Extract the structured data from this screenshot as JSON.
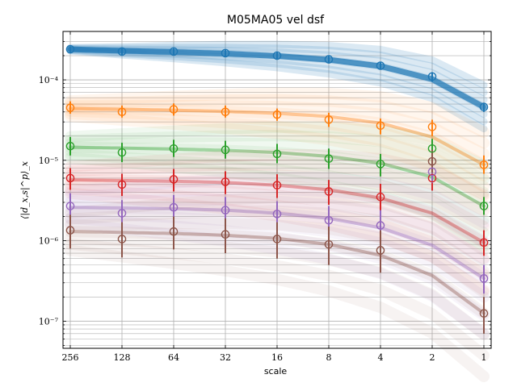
{
  "chart_data": {
    "type": "scatter",
    "title": "M05MA05 vel dsf",
    "xlabel": "scale",
    "ylabel": "⟨|d_x,s|^p⟩_x",
    "x_scale": "log2-reversed",
    "y_scale": "log",
    "x": [
      256,
      128,
      64,
      32,
      16,
      8,
      4,
      2,
      1
    ],
    "x_tick_labels": [
      "256",
      "128",
      "64",
      "32",
      "16",
      "8",
      "4",
      "2",
      "1"
    ],
    "xlim": [
      1,
      256
    ],
    "ylim": [
      4.6e-08,
      0.0004
    ],
    "y_ticks": [
      1e-07,
      1e-06,
      1e-05,
      0.0001
    ],
    "y_tick_labels": [
      "10⁻⁷",
      "10⁻⁶",
      "10⁻⁵",
      "10⁻⁴"
    ],
    "grid": true,
    "series": [
      {
        "color": "#1f77b4",
        "values": [
          0.00024,
          0.000225,
          0.000225,
          0.000215,
          0.0002,
          0.00018,
          0.00015,
          0.00011,
          4.6e-05
        ],
        "err_low": [
          0.00022,
          0.000205,
          0.000205,
          0.000195,
          0.00018,
          0.00016,
          0.000135,
          9.5e-05,
          4e-05
        ],
        "err_high": [
          0.00026,
          0.000245,
          0.000245,
          0.000235,
          0.00022,
          0.0002,
          0.000165,
          0.000125,
          5.2e-05
        ],
        "fit": [
          0.00024,
          0.00023,
          0.000222,
          0.000212,
          0.000198,
          0.000178,
          0.000148,
          0.000102,
          4.6e-05
        ]
      },
      {
        "color": "#ff7f0e",
        "values": [
          4.5e-05,
          4e-05,
          4.3e-05,
          4e-05,
          3.7e-05,
          3.2e-05,
          2.7e-05,
          2.6e-05,
          8.8e-06
        ],
        "err_low": [
          3.8e-05,
          3.4e-05,
          3.6e-05,
          3.4e-05,
          3.1e-05,
          2.6e-05,
          2.1e-05,
          2e-05,
          6.8e-06
        ],
        "err_high": [
          5.4e-05,
          4.8e-05,
          5.1e-05,
          4.8e-05,
          4.4e-05,
          3.9e-05,
          3.3e-05,
          3.2e-05,
          1.15e-05
        ],
        "fit": [
          4.4e-05,
          4.3e-05,
          4.2e-05,
          4.05e-05,
          3.85e-05,
          3.5e-05,
          2.9e-05,
          1.95e-05,
          8.8e-06
        ]
      },
      {
        "color": "#2ca02c",
        "values": [
          1.5e-05,
          1.25e-05,
          1.4e-05,
          1.35e-05,
          1.2e-05,
          1.05e-05,
          9e-06,
          1.4e-05,
          2.7e-06
        ],
        "err_low": [
          1.15e-05,
          9.5e-06,
          1.1e-05,
          1.05e-05,
          9.2e-06,
          7.8e-06,
          6.3e-06,
          1.05e-05,
          2.1e-06
        ],
        "err_high": [
          1.95e-05,
          1.65e-05,
          1.8e-05,
          1.75e-05,
          1.6e-05,
          1.4e-05,
          1.2e-05,
          1.85e-05,
          3.5e-06
        ],
        "fit": [
          1.45e-05,
          1.42e-05,
          1.38e-05,
          1.33e-05,
          1.25e-05,
          1.12e-05,
          9.2e-06,
          6.2e-06,
          2.7e-06
        ]
      },
      {
        "color": "#d62728",
        "values": [
          6e-06,
          5e-06,
          5.8e-06,
          5.4e-06,
          4.9e-06,
          4.1e-06,
          3.5e-06,
          6e-06,
          9.5e-07
        ],
        "err_low": [
          4.3e-06,
          3.6e-06,
          4.1e-06,
          3.8e-06,
          3.4e-06,
          2.8e-06,
          2.3e-06,
          4.2e-06,
          6.5e-07
        ],
        "err_high": [
          8e-06,
          6.8e-06,
          7.8e-06,
          7.3e-06,
          6.7e-06,
          5.7e-06,
          5.1e-06,
          8.2e-06,
          1.35e-06
        ],
        "fit": [
          5.7e-06,
          5.6e-06,
          5.5e-06,
          5.3e-06,
          4.9e-06,
          4.3e-06,
          3.4e-06,
          2.2e-06,
          9.5e-07
        ]
      },
      {
        "color": "#9467bd",
        "values": [
          2.7e-06,
          2.2e-06,
          2.6e-06,
          2.4e-06,
          2.15e-06,
          1.8e-06,
          1.55e-06,
          7.2e-06,
          3.4e-07
        ],
        "err_low": [
          1.8e-06,
          1.5e-06,
          1.75e-06,
          1.6e-06,
          1.45e-06,
          1.2e-06,
          1e-06,
          5.2e-06,
          2.2e-07
        ],
        "err_high": [
          3.9e-06,
          3.2e-06,
          3.7e-06,
          3.5e-06,
          3.1e-06,
          2.7e-06,
          2.4e-06,
          9.8e-06,
          5e-07
        ],
        "fit": [
          2.6e-06,
          2.55e-06,
          2.5e-06,
          2.4e-06,
          2.2e-06,
          1.9e-06,
          1.45e-06,
          8.8e-07,
          3.4e-07
        ]
      },
      {
        "color": "#8c564b",
        "values": [
          1.35e-06,
          1.05e-06,
          1.3e-06,
          1.2e-06,
          1.05e-06,
          9e-07,
          7.6e-07,
          9.7e-06,
          1.25e-07
        ],
        "err_low": [
          8e-07,
          6.2e-07,
          7.8e-07,
          7e-07,
          6e-07,
          5e-07,
          4e-07,
          7e-06,
          7e-08
        ],
        "err_high": [
          2.1e-06,
          1.7e-06,
          2e-06,
          1.9e-06,
          1.7e-06,
          1.5e-06,
          1.35e-06,
          1.35e-05,
          2e-07
        ],
        "fit": [
          1.3e-06,
          1.27e-06,
          1.23e-06,
          1.17e-06,
          1.07e-06,
          9e-07,
          6.6e-07,
          3.7e-07,
          1.25e-07
        ]
      }
    ]
  }
}
